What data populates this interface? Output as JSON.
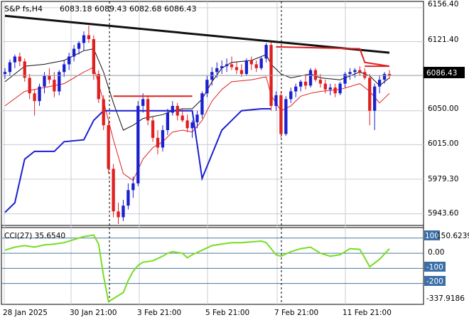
{
  "header": {
    "symbol": "S&P fs,H4",
    "ohlc": "6083.18 6089.43 6082.68 6086.43"
  },
  "indicator": {
    "label": "CCI(27) 35.6540",
    "max_label": "150.6239",
    "min_label": "-337.9186",
    "levels": [
      "100",
      "0.00",
      "-100",
      "-200"
    ]
  },
  "price_labels": [
    "6156.40",
    "6121.40",
    "6086.43",
    "6050.00",
    "6015.00",
    "5979.30",
    "5943.60"
  ],
  "x_labels": [
    "28 Jan 2025",
    "30 Jan 21:00",
    "3 Feb 21:00",
    "5 Feb 21:00",
    "7 Feb 21:00",
    "11 Feb 21:00"
  ],
  "colors": {
    "bull": "#1a1fd0",
    "bear": "#e02020",
    "trendline": "#111111",
    "lower_band": "#1a1fd0",
    "mid_band": "#111111",
    "red_band": "#e02020",
    "cci": "#77dd22",
    "grid": "#c8ccd4",
    "current_price_box": "#000000"
  },
  "chart_data": {
    "type": "candlestick",
    "price_range": [
      5933.0,
      6160.0
    ],
    "cci_range": [
      -337.9186,
      150.6239
    ],
    "current_price": 6086.43,
    "candles": [
      [
        6088,
        6094,
        6083,
        6090
      ],
      [
        6090,
        6103,
        6086,
        6100
      ],
      [
        6100,
        6108,
        6094,
        6106
      ],
      [
        6106,
        6110,
        6096,
        6101
      ],
      [
        6101,
        6104,
        6080,
        6084
      ],
      [
        6084,
        6088,
        6062,
        6068
      ],
      [
        6068,
        6072,
        6045,
        6060
      ],
      [
        6060,
        6078,
        6055,
        6075
      ],
      [
        6075,
        6090,
        6068,
        6086
      ],
      [
        6086,
        6094,
        6078,
        6082
      ],
      [
        6082,
        6090,
        6064,
        6070
      ],
      [
        6070,
        6092,
        6066,
        6090
      ],
      [
        6090,
        6102,
        6085,
        6098
      ],
      [
        6098,
        6110,
        6092,
        6106
      ],
      [
        6106,
        6118,
        6101,
        6114
      ],
      [
        6114,
        6122,
        6108,
        6120
      ],
      [
        6120,
        6132,
        6112,
        6128
      ],
      [
        6128,
        6138,
        6120,
        6124
      ],
      [
        6124,
        6128,
        6082,
        6088
      ],
      [
        6088,
        6092,
        6058,
        6062
      ],
      [
        6062,
        6066,
        6030,
        6035
      ],
      [
        6035,
        6038,
        5985,
        5990
      ],
      [
        5990,
        5995,
        5940,
        5946
      ],
      [
        5946,
        5955,
        5933,
        5940
      ],
      [
        5940,
        5958,
        5936,
        5952
      ],
      [
        5952,
        5975,
        5948,
        5968
      ],
      [
        5968,
        5982,
        5960,
        5975
      ],
      [
        5975,
        6060,
        5972,
        6055
      ],
      [
        6055,
        6068,
        6048,
        6062
      ],
      [
        6062,
        6066,
        6035,
        6040
      ],
      [
        6040,
        6044,
        6018,
        6022
      ],
      [
        6022,
        6030,
        6005,
        6012
      ],
      [
        6012,
        6035,
        6008,
        6030
      ],
      [
        6030,
        6052,
        6025,
        6048
      ],
      [
        6048,
        6060,
        6045,
        6055
      ],
      [
        6055,
        6058,
        6040,
        6045
      ],
      [
        6045,
        6052,
        6038,
        6040
      ],
      [
        6040,
        6046,
        6028,
        6032
      ],
      [
        6032,
        6040,
        6022,
        6038
      ],
      [
        6038,
        6050,
        6032,
        6046
      ],
      [
        6046,
        6070,
        6042,
        6068
      ],
      [
        6068,
        6086,
        6064,
        6082
      ],
      [
        6082,
        6095,
        6076,
        6090
      ],
      [
        6090,
        6100,
        6084,
        6094
      ],
      [
        6094,
        6102,
        6088,
        6096
      ],
      [
        6096,
        6104,
        6090,
        6098
      ],
      [
        6098,
        6106,
        6092,
        6095
      ],
      [
        6095,
        6100,
        6088,
        6092
      ],
      [
        6092,
        6098,
        6085,
        6088
      ],
      [
        6088,
        6104,
        6086,
        6102
      ],
      [
        6102,
        6106,
        6092,
        6098
      ],
      [
        6098,
        6102,
        6090,
        6094
      ],
      [
        6094,
        6106,
        6092,
        6104
      ],
      [
        6104,
        6120,
        6100,
        6118
      ],
      [
        6118,
        6122,
        6050,
        6055
      ],
      [
        6055,
        6070,
        6050,
        6066
      ],
      [
        6066,
        6070,
        6022,
        6026
      ],
      [
        6026,
        6065,
        6024,
        6062
      ],
      [
        6062,
        6074,
        6058,
        6070
      ],
      [
        6070,
        6078,
        6064,
        6075
      ],
      [
        6075,
        6082,
        6070,
        6080
      ],
      [
        6080,
        6088,
        6072,
        6076
      ],
      [
        6076,
        6094,
        6074,
        6092
      ],
      [
        6092,
        6094,
        6080,
        6082
      ],
      [
        6082,
        6088,
        6074,
        6078
      ],
      [
        6078,
        6082,
        6068,
        6072
      ],
      [
        6072,
        6078,
        6066,
        6074
      ],
      [
        6074,
        6078,
        6064,
        6068
      ],
      [
        6068,
        6080,
        6066,
        6078
      ],
      [
        6078,
        6090,
        6074,
        6088
      ],
      [
        6088,
        6094,
        6082,
        6090
      ],
      [
        6090,
        6094,
        6084,
        6092
      ],
      [
        6092,
        6096,
        6086,
        6090
      ],
      [
        6090,
        6094,
        6082,
        6084
      ],
      [
        6084,
        6088,
        6035,
        6050
      ],
      [
        6050,
        6078,
        6030,
        6075
      ],
      [
        6075,
        6086,
        6068,
        6082
      ],
      [
        6082,
        6090,
        6078,
        6088
      ],
      [
        6088,
        6092,
        6083,
        6086
      ]
    ],
    "trendline": [
      [
        0,
        6148
      ],
      [
        78,
        6110
      ]
    ],
    "red_band": [
      [
        0,
        6055
      ],
      [
        4,
        6070
      ],
      [
        8,
        6074
      ],
      [
        12,
        6078
      ],
      [
        16,
        6090
      ],
      [
        18,
        6095
      ],
      [
        20,
        6060
      ],
      [
        22,
        6020
      ],
      [
        24,
        5985
      ],
      [
        26,
        5978
      ],
      [
        28,
        6000
      ],
      [
        30,
        6012
      ],
      [
        32,
        6018
      ],
      [
        34,
        6028
      ],
      [
        36,
        6030
      ],
      [
        38,
        6028
      ],
      [
        40,
        6040
      ],
      [
        42,
        6060
      ],
      [
        44,
        6072
      ],
      [
        46,
        6080
      ],
      [
        50,
        6082
      ],
      [
        53,
        6085
      ],
      [
        54,
        6066
      ],
      [
        56,
        6050
      ],
      [
        58,
        6055
      ],
      [
        60,
        6065
      ],
      [
        62,
        6068
      ],
      [
        64,
        6070
      ],
      [
        68,
        6072
      ],
      [
        72,
        6078
      ],
      [
        74,
        6070
      ],
      [
        76,
        6058
      ],
      [
        78,
        6068
      ]
    ],
    "mid_band": [
      [
        0,
        6080
      ],
      [
        4,
        6096
      ],
      [
        8,
        6098
      ],
      [
        12,
        6102
      ],
      [
        16,
        6112
      ],
      [
        18,
        6114
      ],
      [
        20,
        6090
      ],
      [
        22,
        6058
      ],
      [
        24,
        6030
      ],
      [
        26,
        6035
      ],
      [
        28,
        6042
      ],
      [
        30,
        6044
      ],
      [
        32,
        6046
      ],
      [
        34,
        6050
      ],
      [
        36,
        6052
      ],
      [
        38,
        6052
      ],
      [
        40,
        6062
      ],
      [
        42,
        6080
      ],
      [
        44,
        6094
      ],
      [
        46,
        6100
      ],
      [
        50,
        6102
      ],
      [
        53,
        6108
      ],
      [
        54,
        6098
      ],
      [
        56,
        6088
      ],
      [
        58,
        6084
      ],
      [
        60,
        6086
      ],
      [
        62,
        6088
      ],
      [
        64,
        6084
      ],
      [
        68,
        6082
      ],
      [
        72,
        6090
      ],
      [
        74,
        6086
      ],
      [
        76,
        6076
      ],
      [
        78,
        6084
      ]
    ],
    "lower_band": [
      [
        0,
        5945
      ],
      [
        2,
        5955
      ],
      [
        4,
        6000
      ],
      [
        6,
        6008
      ],
      [
        10,
        6008
      ],
      [
        12,
        6018
      ],
      [
        16,
        6020
      ],
      [
        18,
        6040
      ],
      [
        20,
        6050
      ],
      [
        22,
        6050
      ],
      [
        24,
        6050
      ],
      [
        26,
        6050
      ],
      [
        28,
        6050
      ],
      [
        30,
        6050
      ],
      [
        34,
        6050
      ],
      [
        36,
        6050
      ],
      [
        38,
        6050
      ],
      [
        40,
        5980
      ],
      [
        42,
        6005
      ],
      [
        44,
        6030
      ],
      [
        46,
        6040
      ],
      [
        48,
        6050
      ],
      [
        52,
        6052
      ],
      [
        54,
        6052
      ]
    ],
    "resistance": [
      [
        [
          22,
          6065
        ],
        [
          38,
          6065
        ]
      ],
      [
        [
          55,
          6116
        ],
        [
          72,
          6114
        ],
        [
          73,
          6100
        ],
        [
          78,
          6096
        ]
      ],
      [
        [
          73,
          6096
        ],
        [
          78,
          6096
        ]
      ]
    ],
    "cci": [
      [
        0,
        20
      ],
      [
        2,
        40
      ],
      [
        4,
        50
      ],
      [
        6,
        40
      ],
      [
        8,
        55
      ],
      [
        10,
        60
      ],
      [
        12,
        70
      ],
      [
        14,
        90
      ],
      [
        16,
        110
      ],
      [
        18,
        120
      ],
      [
        19,
        60
      ],
      [
        20,
        -150
      ],
      [
        21,
        -320
      ],
      [
        22,
        -300
      ],
      [
        24,
        -260
      ],
      [
        25,
        -180
      ],
      [
        26,
        -120
      ],
      [
        27,
        -80
      ],
      [
        28,
        -60
      ],
      [
        30,
        -50
      ],
      [
        32,
        -20
      ],
      [
        33,
        0
      ],
      [
        34,
        10
      ],
      [
        36,
        0
      ],
      [
        37,
        -30
      ],
      [
        38,
        -10
      ],
      [
        40,
        20
      ],
      [
        42,
        50
      ],
      [
        44,
        60
      ],
      [
        46,
        70
      ],
      [
        48,
        70
      ],
      [
        50,
        75
      ],
      [
        52,
        80
      ],
      [
        53,
        70
      ],
      [
        54,
        30
      ],
      [
        55,
        -10
      ],
      [
        56,
        -20
      ],
      [
        58,
        10
      ],
      [
        60,
        30
      ],
      [
        62,
        40
      ],
      [
        64,
        0
      ],
      [
        66,
        -20
      ],
      [
        68,
        -10
      ],
      [
        70,
        30
      ],
      [
        72,
        25
      ],
      [
        73,
        -30
      ],
      [
        74,
        -90
      ],
      [
        76,
        -40
      ],
      [
        78,
        30
      ]
    ]
  }
}
